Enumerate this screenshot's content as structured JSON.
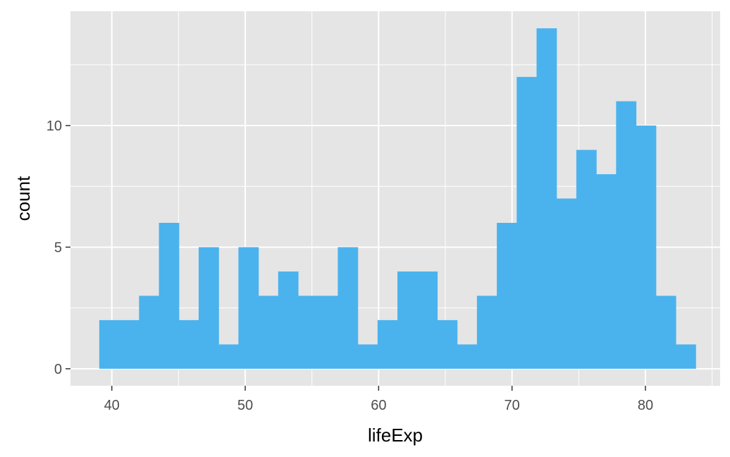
{
  "chart_data": {
    "type": "bar",
    "xlabel": "lifeExp",
    "ylabel": "count",
    "xlim": [
      36.9,
      85.6
    ],
    "ylim": [
      -0.7,
      14.7
    ],
    "x_ticks": [
      40,
      50,
      60,
      70,
      80
    ],
    "y_ticks": [
      0,
      5,
      10
    ],
    "grid": true,
    "bin_width": 1.49,
    "x_start": 39.06,
    "values": [
      2,
      2,
      3,
      6,
      2,
      5,
      1,
      5,
      3,
      4,
      3,
      3,
      5,
      1,
      2,
      4,
      4,
      2,
      1,
      3,
      6,
      12,
      14,
      7,
      9,
      8,
      11,
      10,
      3,
      1
    ],
    "bar_color": "#4AB3EE",
    "panel_color": "#E5E5E5",
    "grid_color": "#FFFFFF"
  }
}
